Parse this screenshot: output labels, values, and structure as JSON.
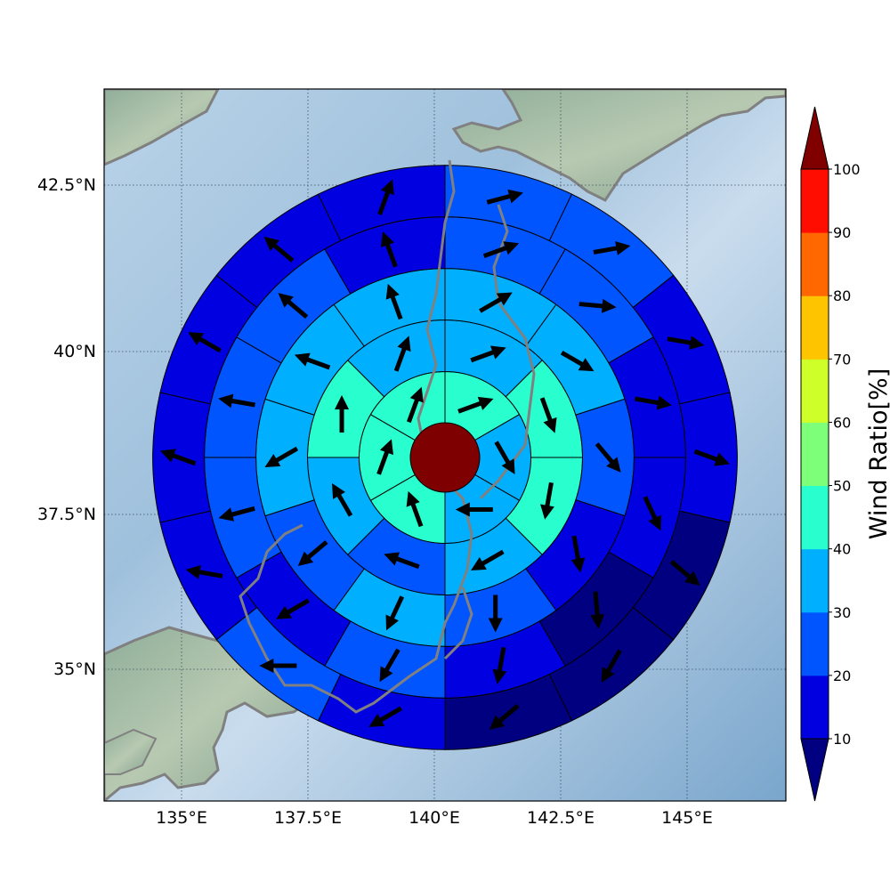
{
  "chart_data": {
    "type": "heatmap",
    "subtype": "polar-sector-map-with-wind-vectors",
    "title": "",
    "xlabel": "",
    "ylabel": "",
    "xlim": [
      133.5,
      147.0
    ],
    "ylim": [
      33.0,
      44.2
    ],
    "x_ticks": [
      135.0,
      137.5,
      140.0,
      142.5,
      145.0
    ],
    "x_tick_labels": [
      "135°E",
      "137.5°E",
      "140°E",
      "142.5°E",
      "145°E"
    ],
    "y_ticks": [
      35.0,
      37.5,
      40.0,
      42.5
    ],
    "y_tick_labels": [
      "35°N",
      "37.5°N",
      "40°N",
      "42.5°N"
    ],
    "grid": true,
    "center": {
      "lon": 140.2,
      "lat": 38.35,
      "value_color": "#7f0000"
    },
    "rings_deg": [
      0.68,
      1.7,
      2.72,
      3.74,
      4.76,
      5.78
    ],
    "sectors_per_ring": [
      6,
      8,
      10,
      12,
      14
    ],
    "colorbar": {
      "label": "Wind Ratio[%]",
      "levels": [
        10,
        20,
        30,
        40,
        50,
        60,
        70,
        80,
        90,
        100
      ],
      "tick_labels": [
        "10",
        "20",
        "30",
        "40",
        "50",
        "60",
        "70",
        "80",
        "90",
        "100"
      ],
      "colors": [
        "#0000e0",
        "#0055ff",
        "#00b0ff",
        "#29ffce",
        "#7dff7a",
        "#ceff29",
        "#ffc400",
        "#ff6800",
        "#ff0d00"
      ],
      "under_color": "#000080",
      "over_color": "#800000",
      "extend": "both"
    },
    "rings": [
      {
        "ring": 1,
        "sector_values": [
          45,
          35,
          35,
          45,
          45,
          45
        ],
        "wind_dir_deg": [
          70,
          150,
          270,
          340,
          20,
          20
        ]
      },
      {
        "ring": 2,
        "sector_values": [
          35,
          45,
          45,
          35,
          25,
          35,
          45,
          35
        ],
        "wind_dir_deg": [
          70,
          160,
          190,
          240,
          290,
          330,
          0,
          20
        ]
      },
      {
        "ring": 3,
        "sector_values": [
          35,
          35,
          25,
          15,
          25,
          35,
          25,
          35,
          35,
          35
        ],
        "wind_dir_deg": [
          60,
          120,
          140,
          170,
          180,
          205,
          230,
          240,
          290,
          340
        ]
      },
      {
        "ring": 4,
        "sector_values": [
          25,
          25,
          15,
          15,
          5,
          15,
          25,
          15,
          25,
          25,
          25,
          15
        ],
        "wind_dir_deg": [
          70,
          95,
          100,
          155,
          175,
          190,
          210,
          240,
          255,
          280,
          310,
          340
        ]
      },
      {
        "ring": 5,
        "sector_values": [
          25,
          25,
          15,
          15,
          5,
          5,
          5,
          15,
          25,
          15,
          15,
          15,
          15,
          15
        ],
        "wind_dir_deg": [
          75,
          80,
          100,
          110,
          130,
          210,
          230,
          240,
          270,
          280,
          290,
          300,
          310,
          20
        ]
      }
    ]
  }
}
